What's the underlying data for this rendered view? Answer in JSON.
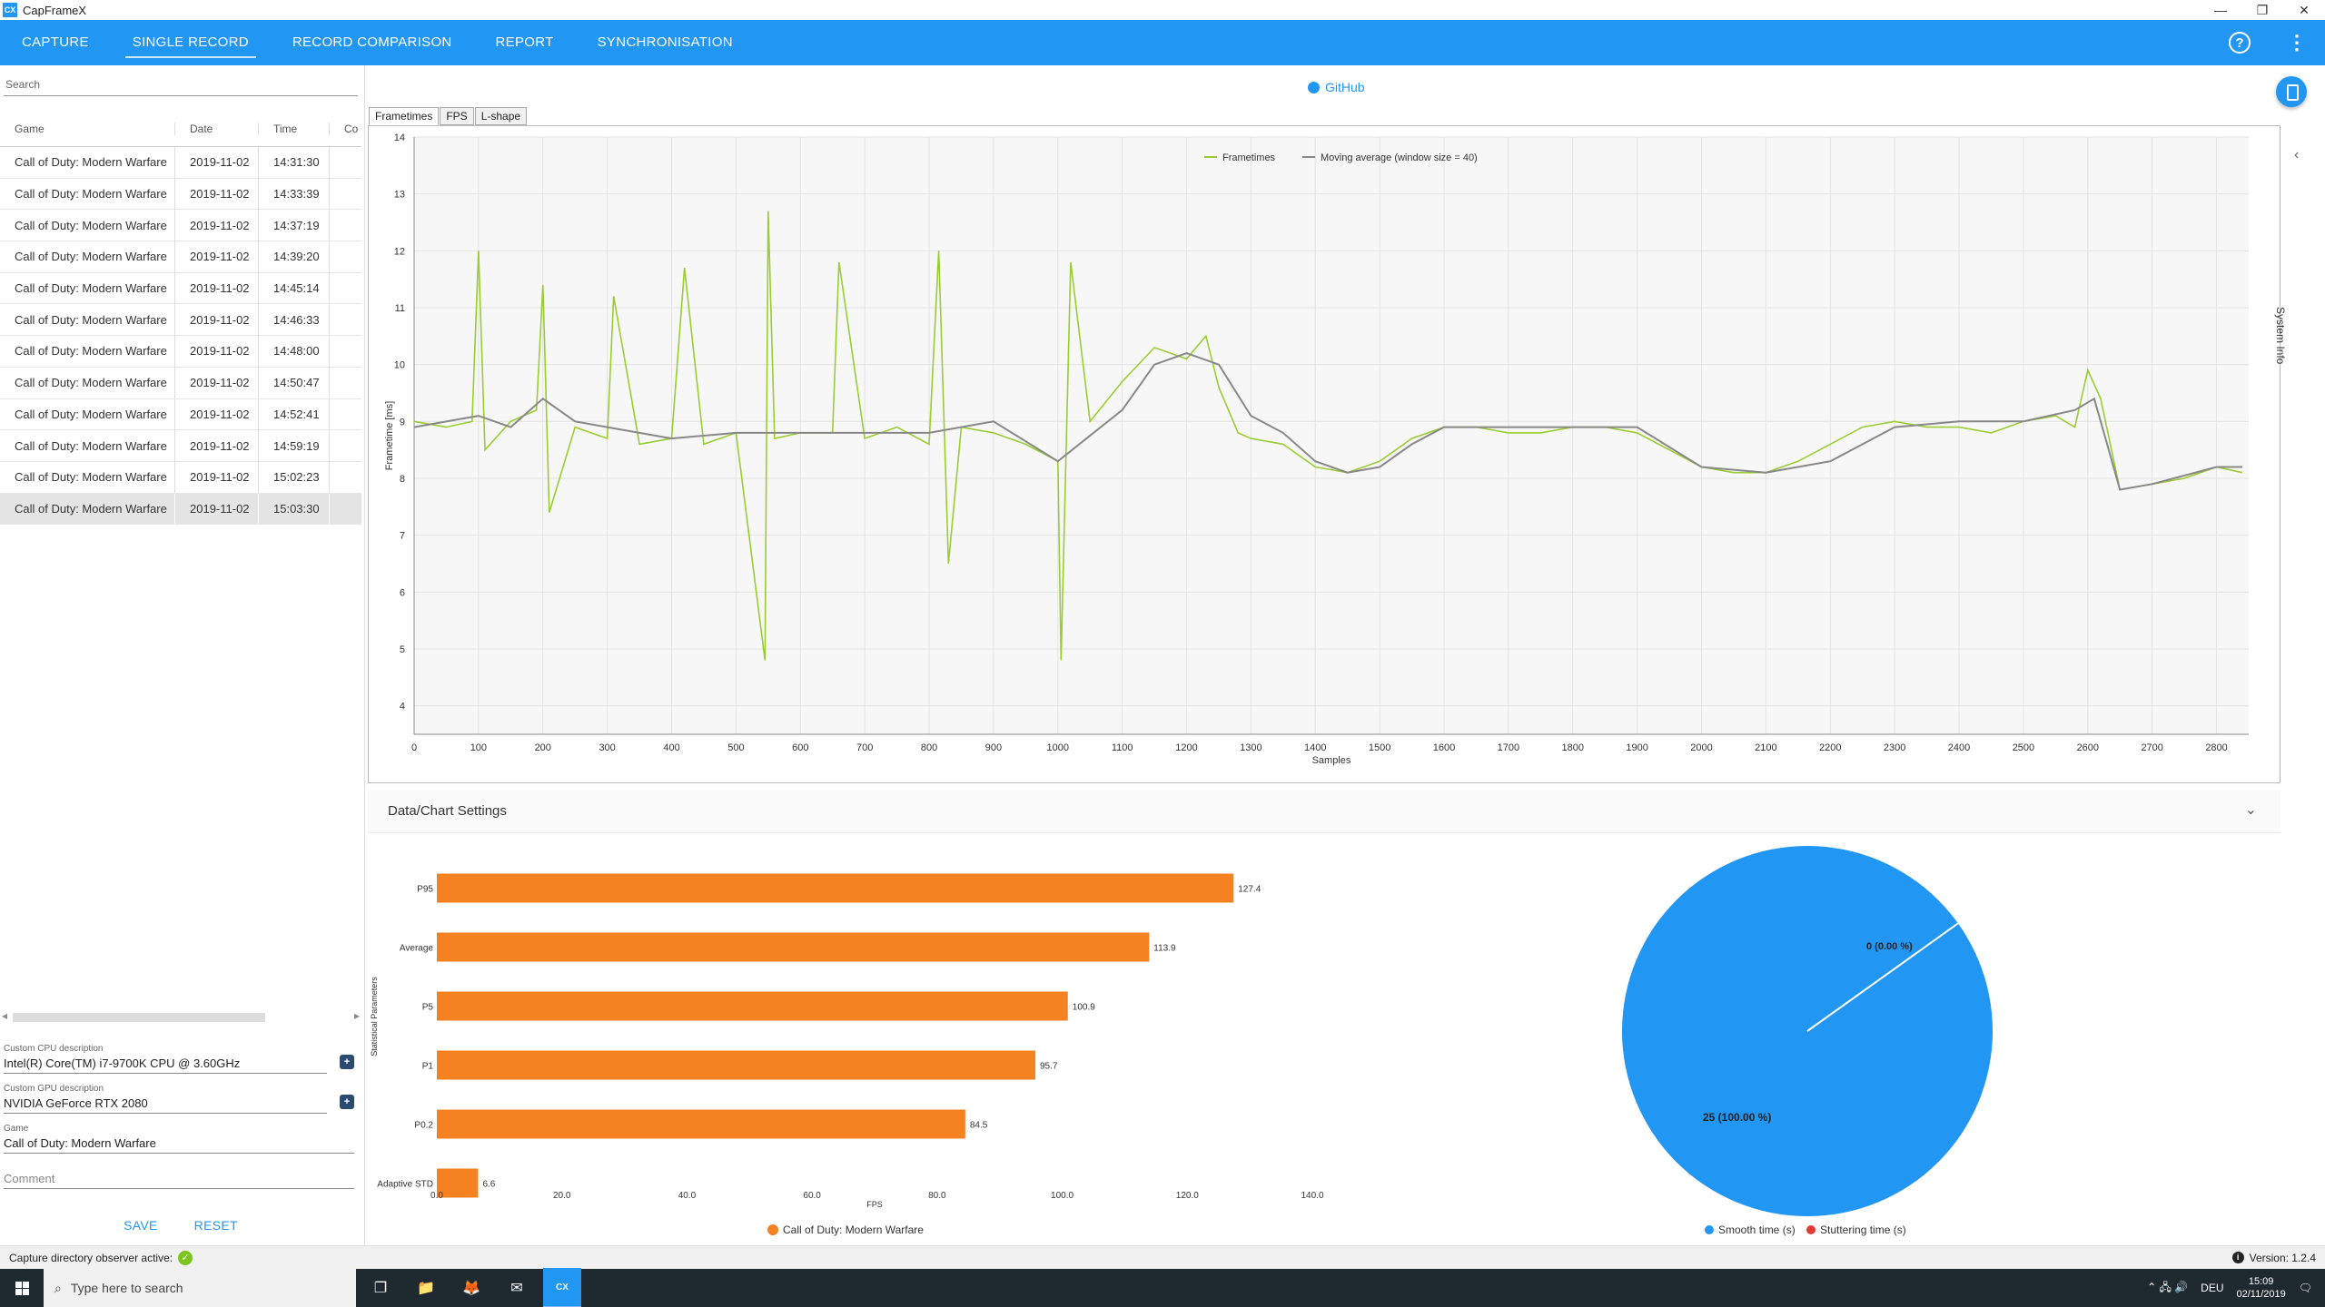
{
  "window": {
    "title": "CapFrameX",
    "icon_text": "CX",
    "minimize": "—",
    "restore": "❐",
    "close": "✕"
  },
  "nav": {
    "tabs": [
      {
        "label": "CAPTURE"
      },
      {
        "label": "SINGLE RECORD"
      },
      {
        "label": "RECORD COMPARISON"
      },
      {
        "label": "REPORT"
      },
      {
        "label": "SYNCHRONISATION"
      }
    ],
    "active": "SINGLE RECORD",
    "help": "?",
    "more": "⋮"
  },
  "search": {
    "placeholder": "Search"
  },
  "records_table": {
    "headers": {
      "game": "Game",
      "date": "Date",
      "time": "Time",
      "comment": "Co"
    },
    "rows": [
      {
        "game": "Call of Duty: Modern Warfare",
        "date": "2019-11-02",
        "time": "14:31:30"
      },
      {
        "game": "Call of Duty: Modern Warfare",
        "date": "2019-11-02",
        "time": "14:33:39"
      },
      {
        "game": "Call of Duty: Modern Warfare",
        "date": "2019-11-02",
        "time": "14:37:19"
      },
      {
        "game": "Call of Duty: Modern Warfare",
        "date": "2019-11-02",
        "time": "14:39:20"
      },
      {
        "game": "Call of Duty: Modern Warfare",
        "date": "2019-11-02",
        "time": "14:45:14"
      },
      {
        "game": "Call of Duty: Modern Warfare",
        "date": "2019-11-02",
        "time": "14:46:33"
      },
      {
        "game": "Call of Duty: Modern Warfare",
        "date": "2019-11-02",
        "time": "14:48:00"
      },
      {
        "game": "Call of Duty: Modern Warfare",
        "date": "2019-11-02",
        "time": "14:50:47"
      },
      {
        "game": "Call of Duty: Modern Warfare",
        "date": "2019-11-02",
        "time": "14:52:41"
      },
      {
        "game": "Call of Duty: Modern Warfare",
        "date": "2019-11-02",
        "time": "14:59:19"
      },
      {
        "game": "Call of Duty: Modern Warfare",
        "date": "2019-11-02",
        "time": "15:02:23"
      },
      {
        "game": "Call of Duty: Modern Warfare",
        "date": "2019-11-02",
        "time": "15:03:30",
        "selected": true
      }
    ]
  },
  "details": {
    "cpu_label": "Custom CPU description",
    "cpu_value": "Intel(R) Core(TM) i7-9700K CPU @ 3.60GHz",
    "gpu_label": "Custom GPU description",
    "gpu_value": "NVIDIA GeForce RTX 2080",
    "game_label": "Game",
    "game_value": "Call of Duty: Modern Warfare",
    "comment_placeholder": "Comment",
    "plus": "+",
    "save_label": "SAVE",
    "reset_label": "RESET"
  },
  "github_label": "GitHub",
  "chart_tabs": [
    "Frametimes",
    "FPS",
    "L-shape"
  ],
  "chart_settings_title": "Data/Chart Settings",
  "system_info_label": "System Info",
  "chart_data": [
    {
      "type": "line",
      "xlabel": "Samples",
      "ylabel": "Frametime [ms]",
      "xlim": [
        0,
        2850
      ],
      "ylim": [
        3.5,
        14
      ],
      "x_ticks": [
        0,
        100,
        200,
        300,
        400,
        500,
        600,
        700,
        800,
        900,
        1000,
        1100,
        1200,
        1300,
        1400,
        1500,
        1600,
        1700,
        1800,
        1900,
        2000,
        2100,
        2200,
        2300,
        2400,
        2500,
        2600,
        2700,
        2800
      ],
      "y_ticks": [
        4,
        5,
        6,
        7,
        8,
        9,
        10,
        11,
        12,
        13,
        14
      ],
      "grid": true,
      "legend": "top-center",
      "series": [
        {
          "name": "Frametimes",
          "color": "#9acd32",
          "x": [
            0,
            50,
            90,
            100,
            110,
            150,
            190,
            200,
            210,
            250,
            300,
            310,
            350,
            400,
            420,
            450,
            500,
            545,
            550,
            560,
            600,
            650,
            660,
            700,
            750,
            800,
            815,
            830,
            850,
            900,
            950,
            1000,
            1005,
            1020,
            1050,
            1100,
            1150,
            1200,
            1230,
            1250,
            1280,
            1300,
            1350,
            1400,
            1450,
            1500,
            1550,
            1600,
            1650,
            1700,
            1750,
            1800,
            1850,
            1900,
            1950,
            2000,
            2050,
            2100,
            2150,
            2200,
            2250,
            2300,
            2350,
            2400,
            2450,
            2500,
            2550,
            2580,
            2600,
            2620,
            2650,
            2700,
            2750,
            2800,
            2840
          ],
          "y": [
            9.0,
            8.9,
            9.0,
            12.0,
            8.5,
            9.0,
            9.2,
            11.4,
            7.4,
            8.9,
            8.7,
            11.2,
            8.6,
            8.7,
            11.7,
            8.6,
            8.8,
            4.8,
            12.7,
            8.7,
            8.8,
            8.8,
            11.8,
            8.7,
            8.9,
            8.6,
            12.0,
            6.5,
            8.9,
            8.8,
            8.6,
            8.3,
            4.8,
            11.8,
            9.0,
            9.7,
            10.3,
            10.1,
            10.5,
            9.6,
            8.8,
            8.7,
            8.6,
            8.2,
            8.1,
            8.3,
            8.7,
            8.9,
            8.9,
            8.8,
            8.8,
            8.9,
            8.9,
            8.8,
            8.5,
            8.2,
            8.1,
            8.1,
            8.3,
            8.6,
            8.9,
            9.0,
            8.9,
            8.9,
            8.8,
            9.0,
            9.1,
            8.9,
            9.9,
            9.4,
            7.8,
            7.9,
            8.0,
            8.2,
            8.1
          ]
        },
        {
          "name": "Moving average (window size = 40)",
          "color": "#888888",
          "x": [
            0,
            100,
            150,
            200,
            250,
            300,
            400,
            500,
            600,
            700,
            800,
            900,
            1000,
            1100,
            1150,
            1200,
            1250,
            1300,
            1350,
            1400,
            1450,
            1500,
            1550,
            1600,
            1700,
            1800,
            1900,
            2000,
            2100,
            2200,
            2300,
            2400,
            2500,
            2580,
            2610,
            2630,
            2650,
            2700,
            2800,
            2840
          ],
          "y": [
            8.9,
            9.1,
            8.9,
            9.4,
            9.0,
            8.9,
            8.7,
            8.8,
            8.8,
            8.8,
            8.8,
            9.0,
            8.3,
            9.2,
            10.0,
            10.2,
            10.0,
            9.1,
            8.8,
            8.3,
            8.1,
            8.2,
            8.6,
            8.9,
            8.9,
            8.9,
            8.9,
            8.2,
            8.1,
            8.3,
            8.9,
            9.0,
            9.0,
            9.2,
            9.4,
            8.6,
            7.8,
            7.9,
            8.2,
            8.2
          ]
        }
      ]
    },
    {
      "type": "bar",
      "orientation": "horizontal",
      "categories": [
        "P95",
        "Average",
        "P5",
        "P1",
        "P0.2",
        "Adaptive STD"
      ],
      "values": [
        127.4,
        113.9,
        100.9,
        95.7,
        84.5,
        6.6
      ],
      "value_labels": [
        "127.4",
        "113.9",
        "100.9",
        "95.7",
        "84.5",
        "6.6"
      ],
      "xlabel": "FPS",
      "ylabel": "Statistical Parameters",
      "xlim": [
        0,
        140
      ],
      "x_ticks": [
        0,
        20,
        40,
        60,
        80,
        100,
        120,
        140
      ],
      "x_tick_labels": [
        "0.0",
        "20.0",
        "40.0",
        "60.0",
        "80.0",
        "100.0",
        "120.0",
        "140.0"
      ],
      "legend": "bottom",
      "series_name": "Call of Duty: Modern Warfare",
      "color": "#f58220"
    },
    {
      "type": "pie",
      "labels": [
        "Smooth time (s)",
        "Stuttering time (s)"
      ],
      "values": [
        25,
        0
      ],
      "slice_labels": [
        "25 (100.00 %)",
        "0 (0.00 %)"
      ],
      "colors": [
        "#2196f3",
        "#e53935"
      ],
      "legend": "bottom"
    }
  ],
  "status": {
    "observer_text": "Capture directory observer active:",
    "check": "✓",
    "info": "i",
    "version": "Version: 1.2.4"
  },
  "taskbar": {
    "search_placeholder": "Type here to search",
    "search_icon": "⌕",
    "apps": [
      "❐",
      "📁",
      "🦊",
      "✉"
    ],
    "cx_label": "CX",
    "tray_icons": "⌃ 🖧 🔊",
    "language": "DEU",
    "time": "15:09",
    "date": "02/11/2019",
    "notifications": "🗨"
  }
}
